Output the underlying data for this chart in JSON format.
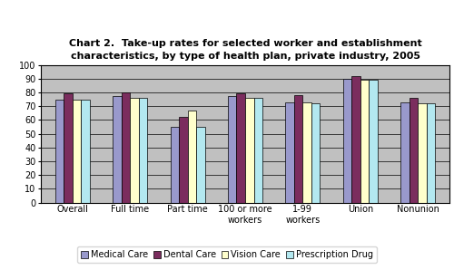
{
  "title": "Chart 2.  Take-up rates for selected worker and establishment\ncharacteristics, by type of health plan, private industry, 2005",
  "categories": [
    "Overall",
    "Full time",
    "Part time",
    "100 or more\nworkers",
    "1-99\nworkers",
    "Union",
    "Nonunion"
  ],
  "series": {
    "Medical Care": [
      75,
      77,
      55,
      77,
      73,
      90,
      73
    ],
    "Dental Care": [
      79,
      80,
      62,
      79,
      78,
      92,
      76
    ],
    "Vision Care": [
      75,
      76,
      67,
      76,
      73,
      89,
      72
    ],
    "Prescription Drug": [
      75,
      76,
      55,
      76,
      72,
      89,
      72
    ]
  },
  "colors": {
    "Medical Care": "#9999cc",
    "Dental Care": "#7b2d5e",
    "Vision Care": "#ffffcc",
    "Prescription Drug": "#b3e8f0"
  },
  "ylim": [
    0,
    100
  ],
  "yticks": [
    0,
    10,
    20,
    30,
    40,
    50,
    60,
    70,
    80,
    90,
    100
  ],
  "plot_bg_color": "#c0c0c0",
  "bar_width": 0.15,
  "title_fontsize": 8,
  "tick_fontsize": 7,
  "legend_fontsize": 7
}
